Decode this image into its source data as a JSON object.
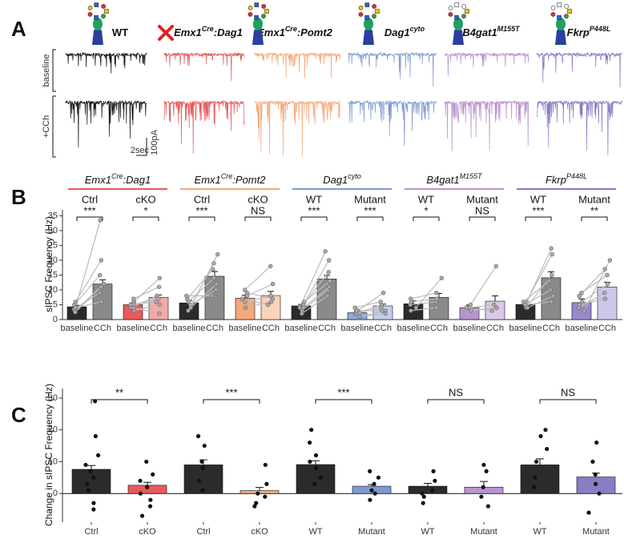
{
  "panel_labels": [
    "A",
    "B",
    "C"
  ],
  "genotypes": [
    {
      "segments": [
        {
          "text": "WT"
        }
      ],
      "color": "#222222"
    },
    {
      "segments": [
        {
          "text": "Emx1"
        },
        {
          "text": "Cre",
          "sup": true
        },
        {
          "text": ":Dag1"
        }
      ],
      "color": "#e8595a"
    },
    {
      "segments": [
        {
          "text": "Emx1"
        },
        {
          "text": "Cre",
          "sup": true
        },
        {
          "text": ":Pomt2"
        }
      ],
      "color": "#f5a77a"
    },
    {
      "segments": [
        {
          "text": "Dag1"
        },
        {
          "text": "cyto",
          "sup": true
        }
      ],
      "color": "#7f9ad1"
    },
    {
      "segments": [
        {
          "text": "B4gat1"
        },
        {
          "text": "M155T",
          "sup": true
        }
      ],
      "color": "#b993cf"
    },
    {
      "segments": [
        {
          "text": "Fkrp"
        },
        {
          "text": "P448L",
          "sup": true
        }
      ],
      "color": "#8a7dc4"
    }
  ],
  "traces": {
    "row_labels": [
      "baseline",
      "+CCh"
    ],
    "scale_x": "2sec",
    "scale_y": "100pA"
  },
  "chart_data": [
    {
      "type": "paired-bar",
      "ylabel": "sIPSC Frequency (Hz)",
      "ylim": [
        0,
        37
      ],
      "yticks": [
        0,
        5,
        10,
        15,
        20,
        25,
        30,
        35
      ],
      "conditions": [
        "Ctrl",
        "cKO",
        "Ctrl",
        "cKO",
        "WT",
        "Mutant",
        "WT",
        "Mutant",
        "WT",
        "Mutant"
      ],
      "categories": [
        "baseline",
        "CCh"
      ],
      "bars": [
        {
          "values": [
            4.3,
            5.0,
            5.6,
            7.2,
            4.6,
            2.3,
            5.3,
            4.0,
            5.1,
            5.7
          ],
          "errors": [
            0.5,
            0.6,
            0.8,
            1.0,
            0.5,
            0.4,
            1.0,
            0.9,
            0.6,
            1.3
          ],
          "colors": [
            "#2b2b2b",
            "#e8595a",
            "#2b2b2b",
            "#f5a77a",
            "#2b2b2b",
            "#8ea7dd",
            "#2b2b2b",
            "#b993cf",
            "#2b2b2b",
            "#9789cc"
          ]
        },
        {
          "values": [
            12.0,
            7.5,
            14.6,
            8.1,
            13.7,
            4.6,
            7.5,
            6.2,
            14.1,
            11.0
          ],
          "errors": [
            1.4,
            0.8,
            1.6,
            1.4,
            1.2,
            0.6,
            1.3,
            1.8,
            2.0,
            1.6
          ],
          "colors": [
            "#8a8a8a",
            "#f4a9a6",
            "#8a8a8a",
            "#fbd3b8",
            "#8a8a8a",
            "#c3d0ee",
            "#8a8a8a",
            "#dcc8e8",
            "#8a8a8a",
            "#cfc6e8"
          ]
        }
      ],
      "points": [
        [
          [
            3,
            33.5
          ],
          [
            4,
            12
          ],
          [
            5,
            15
          ],
          [
            3.5,
            9
          ],
          [
            6,
            20
          ],
          [
            4,
            6
          ],
          [
            2.5,
            11
          ]
        ],
        [
          [
            4,
            8
          ],
          [
            6,
            14
          ],
          [
            5,
            7
          ],
          [
            3,
            5
          ],
          [
            7,
            11
          ],
          [
            5,
            6
          ],
          [
            4,
            2
          ]
        ],
        [
          [
            5,
            22
          ],
          [
            7,
            17
          ],
          [
            4,
            12
          ],
          [
            6,
            14
          ],
          [
            5,
            10
          ],
          [
            3,
            19
          ],
          [
            8,
            8
          ]
        ],
        [
          [
            6,
            8
          ],
          [
            10,
            18
          ],
          [
            9,
            7
          ],
          [
            4,
            6
          ],
          [
            7,
            5
          ],
          [
            8,
            12
          ]
        ],
        [
          [
            4,
            23
          ],
          [
            5,
            16
          ],
          [
            3,
            10
          ],
          [
            6,
            13
          ],
          [
            5,
            20
          ],
          [
            4,
            11
          ],
          [
            2,
            8
          ]
        ],
        [
          [
            2,
            4
          ],
          [
            1,
            3
          ],
          [
            3,
            9
          ],
          [
            2,
            5
          ],
          [
            4,
            6
          ],
          [
            1,
            2
          ],
          [
            3,
            3
          ]
        ],
        [
          [
            4,
            14
          ],
          [
            7,
            9
          ],
          [
            5,
            6
          ],
          [
            6,
            7
          ],
          [
            3,
            4
          ]
        ],
        [
          [
            3,
            4
          ],
          [
            5,
            18
          ],
          [
            4,
            5
          ],
          [
            4,
            3
          ]
        ],
        [
          [
            5,
            24
          ],
          [
            6,
            22
          ],
          [
            4,
            15
          ],
          [
            5,
            10
          ],
          [
            6,
            13
          ],
          [
            4,
            8
          ],
          [
            5,
            6
          ]
        ],
        [
          [
            3,
            20
          ],
          [
            8,
            17
          ],
          [
            6,
            12
          ],
          [
            4,
            9
          ],
          [
            5,
            7
          ],
          [
            9,
            15
          ]
        ]
      ],
      "significance": [
        "***",
        "*",
        "***",
        "NS",
        "***",
        "***",
        "*",
        "NS",
        "***",
        "**"
      ]
    },
    {
      "type": "bar",
      "ylabel": "Change in sIPSC Frequency (Hz)",
      "ylim": [
        -9,
        33
      ],
      "yticks": [
        0,
        10,
        20,
        30
      ],
      "categories": [
        "Ctrl",
        "cKO",
        "Ctrl",
        "cKO",
        "WT",
        "Mutant",
        "WT",
        "Mutant",
        "WT",
        "Mutant"
      ],
      "values": [
        7.6,
        2.6,
        9.0,
        0.9,
        9.1,
        2.3,
        2.3,
        2.0,
        9.0,
        5.2
      ],
      "errors": [
        1.2,
        0.9,
        1.6,
        1.0,
        1.2,
        0.5,
        0.9,
        1.8,
        1.9,
        1.2
      ],
      "colors": [
        "#2b2b2b",
        "#e8595a",
        "#2b2b2b",
        "#f5a77a",
        "#2b2b2b",
        "#7f9ad1",
        "#2b2b2b",
        "#b993cf",
        "#2b2b2b",
        "#8a7dc4"
      ],
      "points": [
        [
          29,
          18,
          12,
          9,
          7,
          5,
          3,
          1,
          -3,
          -5
        ],
        [
          10,
          6,
          4,
          2,
          0,
          -2,
          -4,
          -7
        ],
        [
          18,
          15,
          10,
          8,
          4,
          1
        ],
        [
          9,
          3,
          0,
          -1,
          -3,
          -4
        ],
        [
          20,
          16,
          12,
          10,
          8,
          5,
          3
        ],
        [
          7,
          5,
          3,
          1,
          0,
          -2
        ],
        [
          7,
          4,
          1,
          0,
          -1,
          -3
        ],
        [
          9,
          7,
          2,
          -1,
          -4
        ],
        [
          20,
          18,
          14,
          10,
          5,
          2
        ],
        [
          16,
          10,
          6,
          3,
          0,
          -6
        ]
      ],
      "significance": [
        "**",
        "***",
        "***",
        "NS",
        "NS"
      ]
    }
  ]
}
